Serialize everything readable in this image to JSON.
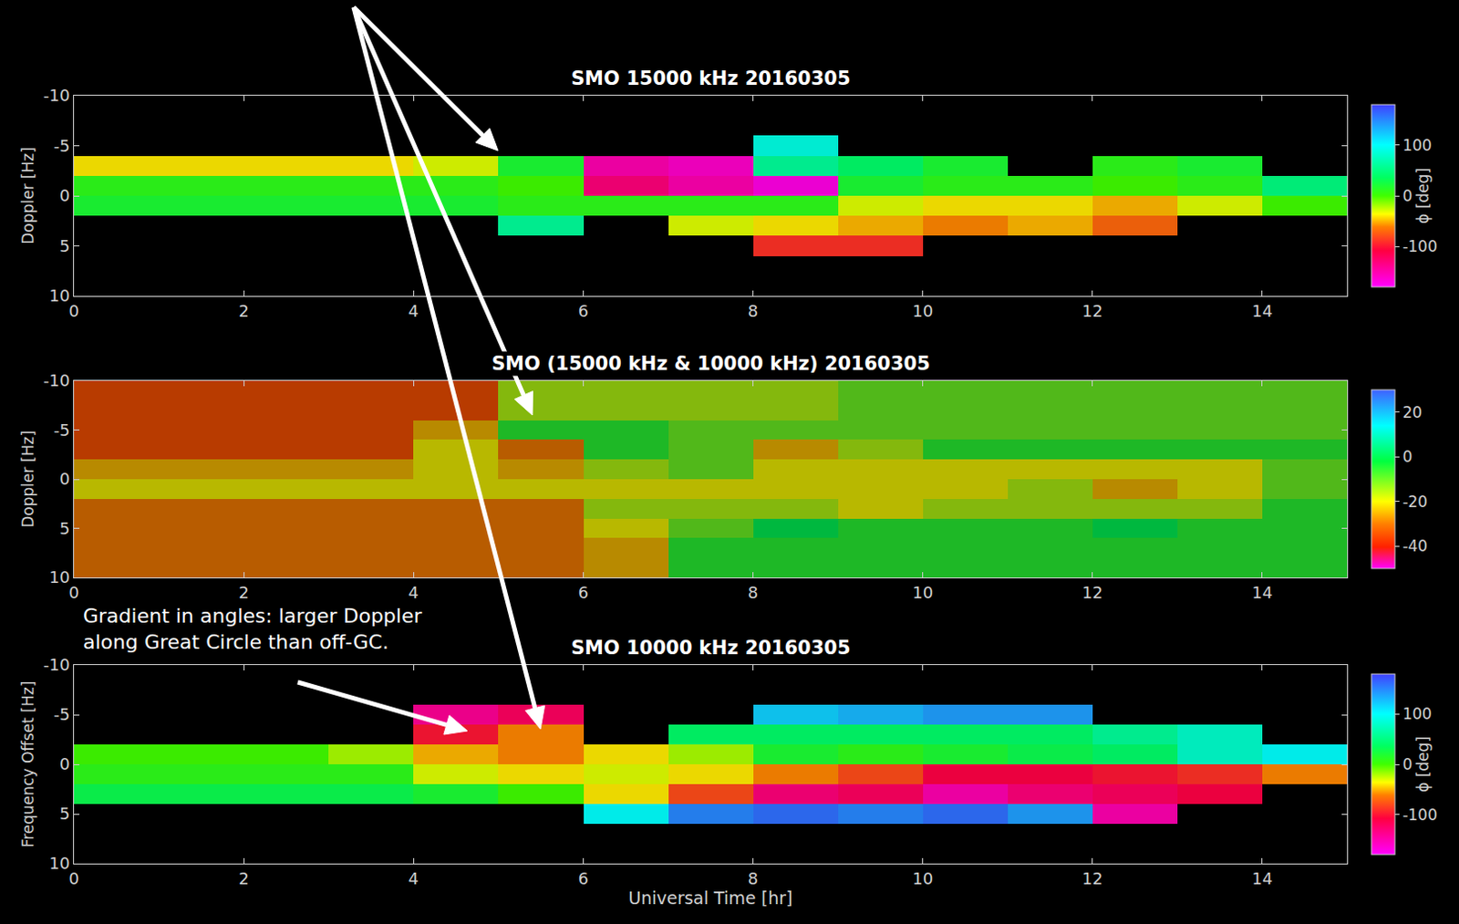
{
  "chart_data": [
    {
      "type": "heatmap",
      "title": "SMO 15000 kHz 20160305",
      "y_label": "Doppler [Hz]",
      "x": [
        0.5,
        1.5,
        2.5,
        3.5,
        4.5,
        5.5,
        6.5,
        7.5,
        8.5,
        9.5,
        10.5,
        11.5,
        12.5,
        13.5,
        14.5
      ],
      "y": [
        -9,
        -7,
        -5,
        -3,
        -1,
        1,
        3,
        5,
        7,
        9
      ],
      "z": [
        [
          null,
          null,
          null,
          null,
          null,
          null,
          null,
          null,
          null,
          null,
          null,
          null,
          null,
          null,
          null
        ],
        [
          null,
          null,
          null,
          null,
          null,
          null,
          null,
          null,
          null,
          null,
          null,
          null,
          null,
          null,
          null
        ],
        [
          null,
          null,
          null,
          null,
          null,
          null,
          null,
          null,
          90,
          null,
          null,
          null,
          null,
          null,
          null
        ],
        [
          -40,
          -40,
          -40,
          -40,
          -30,
          20,
          -150,
          -160,
          60,
          40,
          20,
          null,
          10,
          20,
          null
        ],
        [
          10,
          10,
          10,
          10,
          10,
          0,
          -130,
          -150,
          -170,
          20,
          10,
          10,
          0,
          10,
          50
        ],
        [
          20,
          20,
          20,
          20,
          20,
          10,
          10,
          10,
          10,
          -30,
          -40,
          -40,
          -50,
          -30,
          0
        ],
        [
          null,
          null,
          null,
          null,
          null,
          60,
          null,
          -30,
          -40,
          -50,
          -60,
          -50,
          -70,
          null,
          null
        ],
        [
          null,
          null,
          null,
          null,
          null,
          null,
          null,
          null,
          -90,
          -90,
          null,
          null,
          null,
          null,
          null
        ],
        [
          null,
          null,
          null,
          null,
          null,
          null,
          null,
          null,
          null,
          null,
          null,
          null,
          null,
          null,
          null
        ],
        [
          null,
          null,
          null,
          null,
          null,
          null,
          null,
          null,
          null,
          null,
          null,
          null,
          null,
          null,
          null
        ]
      ],
      "xlim": [
        0,
        15
      ],
      "xticks": [
        0,
        2,
        4,
        6,
        8,
        10,
        12,
        14
      ],
      "ylim": [
        10,
        -10
      ],
      "yticks": [
        -10,
        -5,
        0,
        5,
        10
      ],
      "zlim": [
        -180,
        180
      ],
      "zticks": [
        100,
        0,
        -100
      ],
      "colorbar_title": "ϕ [deg]",
      "grid": false
    },
    {
      "type": "heatmap",
      "title": "SMO (15000 kHz & 10000 kHz) 20160305",
      "y_label": "Doppler [Hz]",
      "x": [
        0.5,
        1.5,
        2.5,
        3.5,
        4.5,
        5.5,
        6.5,
        7.5,
        8.5,
        9.5,
        10.5,
        11.5,
        12.5,
        13.5,
        14.5
      ],
      "y": [
        -9,
        -7,
        -5,
        -3,
        -1,
        1,
        3,
        5,
        7,
        9
      ],
      "z": [
        [
          -35,
          -35,
          -35,
          -35,
          -35,
          -15,
          -15,
          -15,
          -15,
          -10,
          -10,
          -10,
          -10,
          -10,
          -10
        ],
        [
          -35,
          -35,
          -35,
          -35,
          -35,
          -15,
          -15,
          -15,
          -15,
          -10,
          -10,
          -10,
          -10,
          -10,
          -10
        ],
        [
          -35,
          -35,
          -35,
          -35,
          -25,
          -5,
          -5,
          -10,
          -10,
          -10,
          -10,
          -10,
          -10,
          -10,
          -10
        ],
        [
          -35,
          -35,
          -35,
          -35,
          -20,
          -30,
          -5,
          -10,
          -25,
          -15,
          -5,
          -5,
          -5,
          -5,
          -5
        ],
        [
          -25,
          -25,
          -25,
          -25,
          -20,
          -25,
          -15,
          -10,
          -20,
          -20,
          -20,
          -20,
          -20,
          -20,
          -10
        ],
        [
          -20,
          -20,
          -20,
          -20,
          -20,
          -20,
          -20,
          -20,
          -20,
          -20,
          -20,
          -15,
          -25,
          -20,
          -10
        ],
        [
          -30,
          -30,
          -30,
          -30,
          -30,
          -30,
          -15,
          -15,
          -15,
          -20,
          -15,
          -15,
          -15,
          -15,
          -5
        ],
        [
          -30,
          -30,
          -30,
          -30,
          -30,
          -30,
          -20,
          -10,
          0,
          -5,
          -5,
          -5,
          0,
          -5,
          -5
        ],
        [
          -30,
          -30,
          -30,
          -30,
          -30,
          -30,
          -25,
          -5,
          -5,
          -5,
          -5,
          -5,
          -5,
          -5,
          -5
        ],
        [
          -30,
          -30,
          -30,
          -30,
          -30,
          -30,
          -25,
          -5,
          -5,
          -5,
          -5,
          -5,
          -5,
          -5,
          -5
        ]
      ],
      "xlim": [
        0,
        15
      ],
      "xticks": [
        0,
        2,
        4,
        6,
        8,
        10,
        12,
        14
      ],
      "ylim": [
        10,
        -10
      ],
      "yticks": [
        -10,
        -5,
        0,
        5,
        10
      ],
      "zlim": [
        -50,
        30
      ],
      "zticks": [
        20,
        0,
        -20,
        -40
      ],
      "grid": false
    },
    {
      "type": "heatmap",
      "title": "SMO 10000 kHz 20160305",
      "y_label": "Frequency Offset [Hz]",
      "x_label": "Universal Time [hr]",
      "x": [
        0.5,
        1.5,
        2.5,
        3.5,
        4.5,
        5.5,
        6.5,
        7.5,
        8.5,
        9.5,
        10.5,
        11.5,
        12.5,
        13.5,
        14.5
      ],
      "y": [
        -9,
        -7,
        -5,
        -3,
        -1,
        1,
        3,
        5,
        7,
        9
      ],
      "z": [
        [
          null,
          null,
          null,
          null,
          null,
          null,
          null,
          null,
          null,
          null,
          null,
          null,
          null,
          null,
          null
        ],
        [
          null,
          null,
          null,
          null,
          null,
          null,
          null,
          null,
          null,
          null,
          null,
          null,
          null,
          null,
          null
        ],
        [
          null,
          null,
          null,
          null,
          -140,
          -120,
          null,
          null,
          120,
          130,
          140,
          140,
          null,
          null,
          null
        ],
        [
          null,
          null,
          null,
          null,
          -100,
          -60,
          null,
          40,
          40,
          40,
          40,
          40,
          60,
          80,
          null
        ],
        [
          0,
          0,
          0,
          -20,
          -50,
          -60,
          -40,
          -20,
          20,
          10,
          20,
          30,
          40,
          80,
          100
        ],
        [
          10,
          10,
          10,
          10,
          -30,
          -40,
          -30,
          -40,
          -60,
          -80,
          -110,
          -110,
          -100,
          -90,
          -60
        ],
        [
          30,
          30,
          30,
          30,
          20,
          0,
          -40,
          -80,
          -130,
          -120,
          -150,
          -130,
          -120,
          -110,
          null
        ],
        [
          null,
          null,
          null,
          null,
          null,
          null,
          100,
          150,
          160,
          150,
          160,
          140,
          -150,
          null,
          null
        ],
        [
          null,
          null,
          null,
          null,
          null,
          null,
          null,
          null,
          null,
          null,
          null,
          null,
          null,
          null,
          null
        ],
        [
          null,
          null,
          null,
          null,
          null,
          null,
          null,
          null,
          null,
          null,
          null,
          null,
          null,
          null,
          null
        ]
      ],
      "xlim": [
        0,
        15
      ],
      "xticks": [
        0,
        2,
        4,
        6,
        8,
        10,
        12,
        14
      ],
      "ylim": [
        10,
        -10
      ],
      "yticks": [
        -10,
        -5,
        0,
        5,
        10
      ],
      "zlim": [
        -180,
        180
      ],
      "zticks": [
        100,
        0,
        -100
      ],
      "colorbar_title": "ϕ [deg]",
      "annotations": [
        "Gradient in angles: larger Doppler along Great Circle than off-GC."
      ],
      "grid": false
    }
  ]
}
